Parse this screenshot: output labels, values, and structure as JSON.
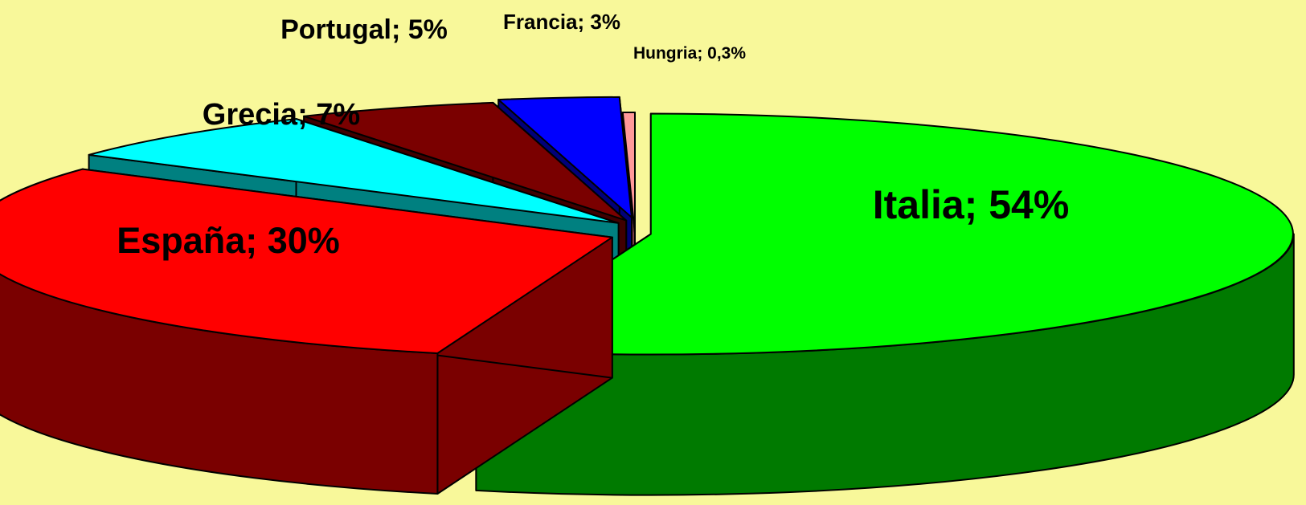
{
  "chart_data": {
    "type": "pie",
    "style": "3d-exploded",
    "unit": "%",
    "slices": [
      {
        "name": "Italia",
        "value": 54,
        "label": "Italia; 54%",
        "top_color": "#00FF00",
        "side_color": "#007A00"
      },
      {
        "name": "España",
        "value": 30,
        "label": "España; 30%",
        "top_color": "#FF0000",
        "side_color": "#7A0000"
      },
      {
        "name": "Grecia",
        "value": 7,
        "label": "Grecia; 7%",
        "top_color": "#00FFFF",
        "side_color": "#008080"
      },
      {
        "name": "Portugal",
        "value": 5,
        "label": "Portugal; 5%",
        "top_color": "#7A0000",
        "side_color": "#400000"
      },
      {
        "name": "Francia",
        "value": 3,
        "label": "Francia; 3%",
        "top_color": "#0000FF",
        "side_color": "#00007A"
      },
      {
        "name": "Hungria",
        "value": 0.3,
        "label": "Hungria; 0,3%",
        "top_color": "#FF9999",
        "side_color": "#7A4040"
      }
    ],
    "background_color": "#F8F89A"
  }
}
